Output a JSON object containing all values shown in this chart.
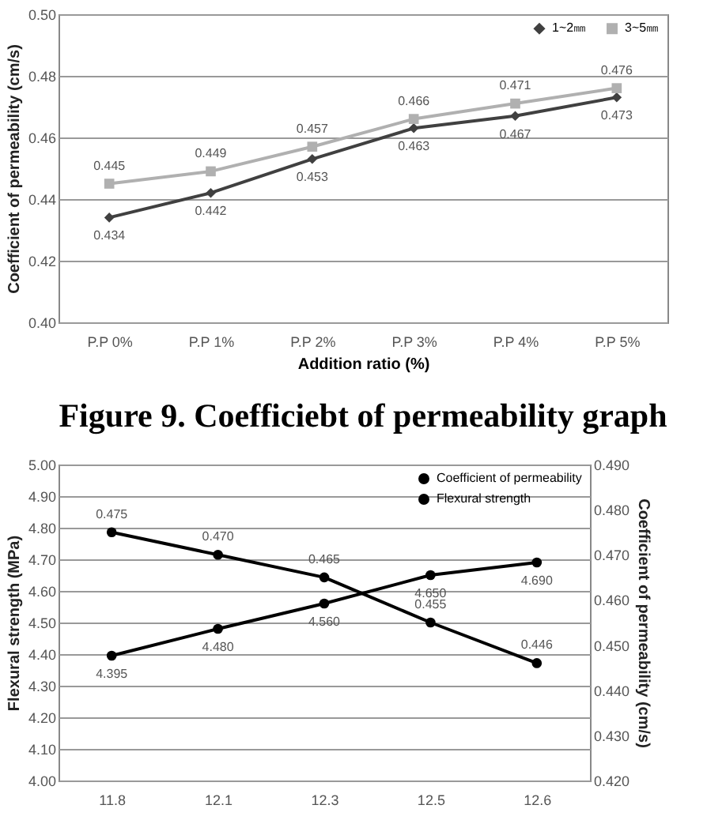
{
  "chart_data": [
    {
      "type": "line",
      "title": "Figure 9. Coefficiebt of permeability graph",
      "xlabel": "Addition ratio (%)",
      "ylabel": "Coefficient of permeability (cm/s)",
      "categories": [
        "P.P 0%",
        "P.P 1%",
        "P.P 2%",
        "P.P 3%",
        "P.P 4%",
        "P.P 5%"
      ],
      "series": [
        {
          "name": "1~2㎜",
          "color": "#404040",
          "marker": "diamond",
          "values": [
            0.434,
            0.442,
            0.453,
            0.463,
            0.467,
            0.473
          ],
          "value_labels": [
            "0.434",
            "0.442",
            "0.453",
            "0.463",
            "0.467",
            "0.473"
          ]
        },
        {
          "name": "3~5㎜",
          "color": "#b0b0b0",
          "marker": "square",
          "values": [
            0.445,
            0.449,
            0.457,
            0.466,
            0.471,
            0.476
          ],
          "value_labels": [
            "0.445",
            "0.449",
            "0.457",
            "0.466",
            "0.471",
            "0.476"
          ]
        }
      ],
      "ylim": [
        0.4,
        0.5
      ],
      "yticks": [
        {
          "value": 0.4,
          "label": "0.40"
        },
        {
          "value": 0.42,
          "label": "0.42"
        },
        {
          "value": 0.44,
          "label": "0.44"
        },
        {
          "value": 0.46,
          "label": "0.46"
        },
        {
          "value": 0.48,
          "label": "0.48"
        },
        {
          "value": 0.5,
          "label": "0.50"
        }
      ],
      "grid": "y",
      "legend": "top right",
      "line_style": "solid"
    },
    {
      "type": "line",
      "ylabel": "Flexural strength (MPa)",
      "y2label": "Coefficient of permeability (cm/s)",
      "categories": [
        "11.8",
        "12.1",
        "12.3",
        "12.5",
        "12.6"
      ],
      "series": [
        {
          "name": "Coefficient of permeability",
          "color": "#000000",
          "marker": "circle",
          "values": [
            4.395,
            4.48,
            4.56,
            4.65,
            4.69
          ],
          "value_labels": [
            "4.395",
            "4.480",
            "4.560",
            "4.650",
            "4.690"
          ]
        },
        {
          "name": "Flexural strength",
          "color": "#000000",
          "marker": "circle",
          "axis": "y2",
          "values": [
            0.475,
            0.47,
            0.465,
            0.455,
            0.446
          ],
          "value_labels": [
            "0.475",
            "0.470",
            "0.465",
            "0.455",
            "0.446"
          ]
        }
      ],
      "ylim": [
        4,
        5
      ],
      "yticks": [
        {
          "value": 4,
          "label": "4.00"
        },
        {
          "value": 4.1,
          "label": "4.10"
        },
        {
          "value": 4.2,
          "label": "4.20"
        },
        {
          "value": 4.3,
          "label": "4.30"
        },
        {
          "value": 4.4,
          "label": "4.40"
        },
        {
          "value": 4.5,
          "label": "4.50"
        },
        {
          "value": 4.6,
          "label": "4.60"
        },
        {
          "value": 4.7,
          "label": "4.70"
        },
        {
          "value": 4.8,
          "label": "4.80"
        },
        {
          "value": 4.9,
          "label": "4.90"
        },
        {
          "value": 5,
          "label": "5.00"
        }
      ],
      "y2lim": [
        0.42,
        0.49
      ],
      "y2ticks": [
        {
          "value": 0.42,
          "label": "0.420"
        },
        {
          "value": 0.43,
          "label": "0.430"
        },
        {
          "value": 0.44,
          "label": "0.440"
        },
        {
          "value": 0.45,
          "label": "0.450"
        },
        {
          "value": 0.46,
          "label": "0.460"
        },
        {
          "value": 0.47,
          "label": "0.470"
        },
        {
          "value": 0.48,
          "label": "0.480"
        },
        {
          "value": 0.49,
          "label": "0.490"
        }
      ],
      "grid": "y",
      "legend": "top right",
      "line_style": "solid"
    }
  ]
}
